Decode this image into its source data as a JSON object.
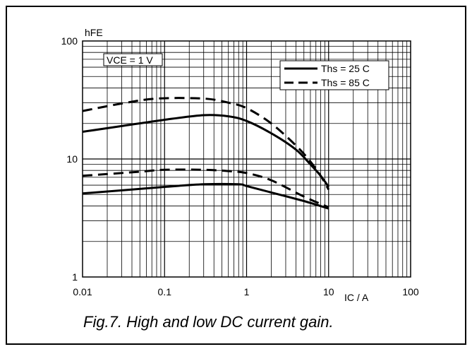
{
  "figure": {
    "caption": "Fig.7.   High and low DC current gain."
  },
  "chart_data": {
    "type": "line",
    "xscale": "log",
    "yscale": "log",
    "xlim": [
      0.01,
      100
    ],
    "ylim": [
      1,
      100
    ],
    "xlabel": "IC / A",
    "ylabel": "hFE",
    "xticks": [
      "0.01",
      "0.1",
      "1",
      "10",
      "100"
    ],
    "yticks": [
      "1",
      "10",
      "100"
    ],
    "grid": true,
    "legend_position": "top-right",
    "condition_label": "VCE = 1 V",
    "series": [
      {
        "name": "Ths = 25 C",
        "style": "solid",
        "curves": [
          {
            "x": [
              0.01,
              0.03,
              0.1,
              0.3,
              0.6,
              1,
              2,
              4,
              6,
              8,
              10
            ],
            "y": [
              17,
              19,
              21.5,
              23.5,
              23,
              21,
              16.5,
              12,
              9,
              7.2,
              5.8
            ]
          },
          {
            "x": [
              0.01,
              0.1,
              0.3,
              0.8,
              1,
              2,
              5,
              10
            ],
            "y": [
              5.1,
              5.8,
              6.1,
              6.1,
              5.9,
              5.2,
              4.4,
              3.8
            ]
          }
        ]
      },
      {
        "name": "Ths = 85 C",
        "style": "dashed",
        "curves": [
          {
            "x": [
              0.01,
              0.03,
              0.08,
              0.3,
              0.6,
              1,
              2,
              4,
              6,
              8,
              10
            ],
            "y": [
              25.5,
              29.5,
              32.5,
              32.5,
              30,
              27,
              20,
              13,
              9.5,
              7.2,
              5.5
            ]
          },
          {
            "x": [
              0.01,
              0.05,
              0.1,
              0.3,
              0.6,
              1,
              2,
              5,
              10
            ],
            "y": [
              7.2,
              7.8,
              8.1,
              8.1,
              7.9,
              7.6,
              6.6,
              4.8,
              3.9
            ]
          }
        ]
      }
    ]
  }
}
